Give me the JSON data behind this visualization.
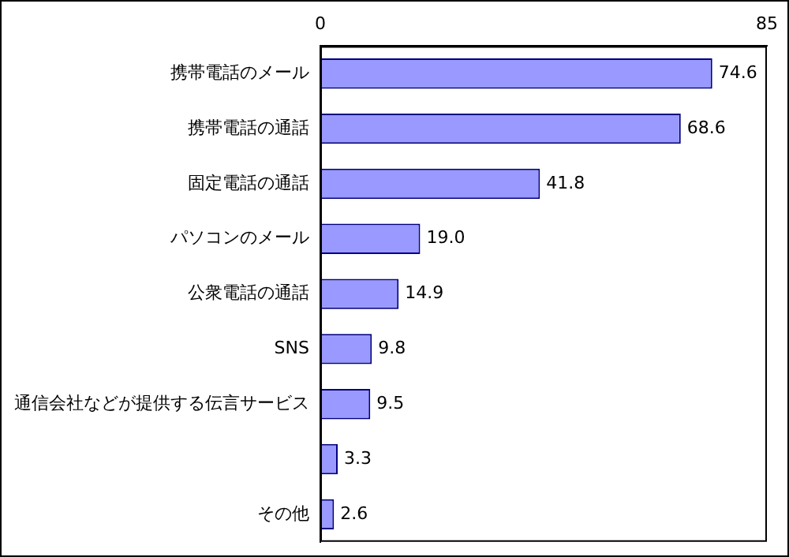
{
  "chart_data": {
    "type": "bar",
    "orientation": "horizontal",
    "categories": [
      "携帯電話のメール",
      "携帯電話の通話",
      "固定電話の通話",
      "パソコンのメール",
      "公衆電話の通話",
      "SNS",
      "通信会社などが提供する伝言サービス",
      null,
      "その他"
    ],
    "values": [
      74.6,
      68.6,
      41.8,
      19.0,
      14.9,
      9.8,
      9.5,
      3.3,
      2.6
    ],
    "value_labels": [
      "74.6",
      "68.6",
      "41.8",
      "19.0",
      "14.9",
      "9.8",
      "9.5",
      "3.3",
      "2.6"
    ],
    "color": "#9999ff",
    "xlim": [
      0,
      85
    ],
    "xticks": [
      0,
      85
    ],
    "grid": false,
    "legend": false
  }
}
